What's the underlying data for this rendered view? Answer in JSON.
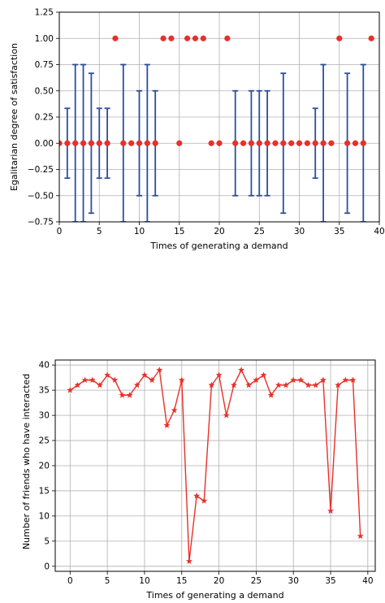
{
  "chart_data": [
    {
      "type": "scatter",
      "title": "",
      "xlabel": "Times of generating a demand",
      "ylabel": "Egalitarian degree of satisfaction",
      "xlim": [
        0,
        40
      ],
      "ylim": [
        -0.75,
        1.25
      ],
      "xticks": [
        "0",
        "5",
        "10",
        "15",
        "20",
        "25",
        "30",
        "35",
        "40"
      ],
      "yticks": [
        "−0.75",
        "−0.50",
        "−0.25",
        "0.00",
        "0.25",
        "0.50",
        "0.75",
        "1.00",
        "1.25"
      ],
      "grid": true,
      "marker_color": "#e8302a",
      "errorbar_color": "#2b4f9e",
      "series": [
        {
          "x": [
            0,
            1,
            2,
            3,
            4,
            5,
            6,
            7,
            8,
            9,
            10,
            11,
            12,
            13,
            14,
            15,
            16,
            17,
            18,
            19,
            20,
            21,
            22,
            23,
            24,
            25,
            26,
            27,
            28,
            29,
            30,
            31,
            32,
            33,
            34,
            35,
            36,
            37,
            38,
            39
          ],
          "y": [
            0,
            0,
            0,
            0,
            0,
            0,
            0,
            1,
            0,
            0,
            0,
            0,
            0,
            1,
            1,
            0,
            1,
            1,
            1,
            0,
            0,
            1,
            0,
            0,
            0,
            0,
            0,
            0,
            0,
            0,
            0,
            0,
            0,
            0,
            0,
            1,
            0,
            0,
            0,
            1
          ],
          "yerr": [
            0,
            0.333,
            0.75,
            0.75,
            0.667,
            0.333,
            0.333,
            0,
            0.75,
            0,
            0.5,
            0.75,
            0.5,
            0,
            0,
            0,
            0,
            0,
            0,
            0,
            0,
            0,
            0.5,
            0,
            0.5,
            0.5,
            0.5,
            0,
            0.667,
            0,
            0,
            0,
            0.333,
            0.75,
            0,
            0,
            0.667,
            0,
            0.75,
            0
          ]
        }
      ]
    },
    {
      "type": "line",
      "title": "",
      "xlabel": "Times of generating a demand",
      "ylabel": "Number of friends who have interacted",
      "xlim": [
        -2,
        41
      ],
      "ylim": [
        -1,
        41
      ],
      "xticks": [
        "0",
        "5",
        "10",
        "15",
        "20",
        "25",
        "30",
        "35",
        "40"
      ],
      "yticks": [
        "0",
        "5",
        "10",
        "15",
        "20",
        "25",
        "30",
        "35",
        "40"
      ],
      "grid": true,
      "line_color": "#e8302a",
      "marker": "star",
      "series": [
        {
          "x": [
            0,
            1,
            2,
            3,
            4,
            5,
            6,
            7,
            8,
            9,
            10,
            11,
            12,
            13,
            14,
            15,
            16,
            17,
            18,
            19,
            20,
            21,
            22,
            23,
            24,
            25,
            26,
            27,
            28,
            29,
            30,
            31,
            32,
            33,
            34,
            35,
            36,
            37,
            38,
            39
          ],
          "y": [
            35,
            36,
            37,
            37,
            36,
            38,
            37,
            34,
            34,
            36,
            38,
            37,
            39,
            28,
            31,
            37,
            1,
            14,
            13,
            36,
            38,
            30,
            36,
            39,
            36,
            37,
            38,
            34,
            36,
            36,
            37,
            37,
            36,
            36,
            37,
            11,
            36,
            37,
            37,
            6
          ]
        }
      ]
    }
  ]
}
